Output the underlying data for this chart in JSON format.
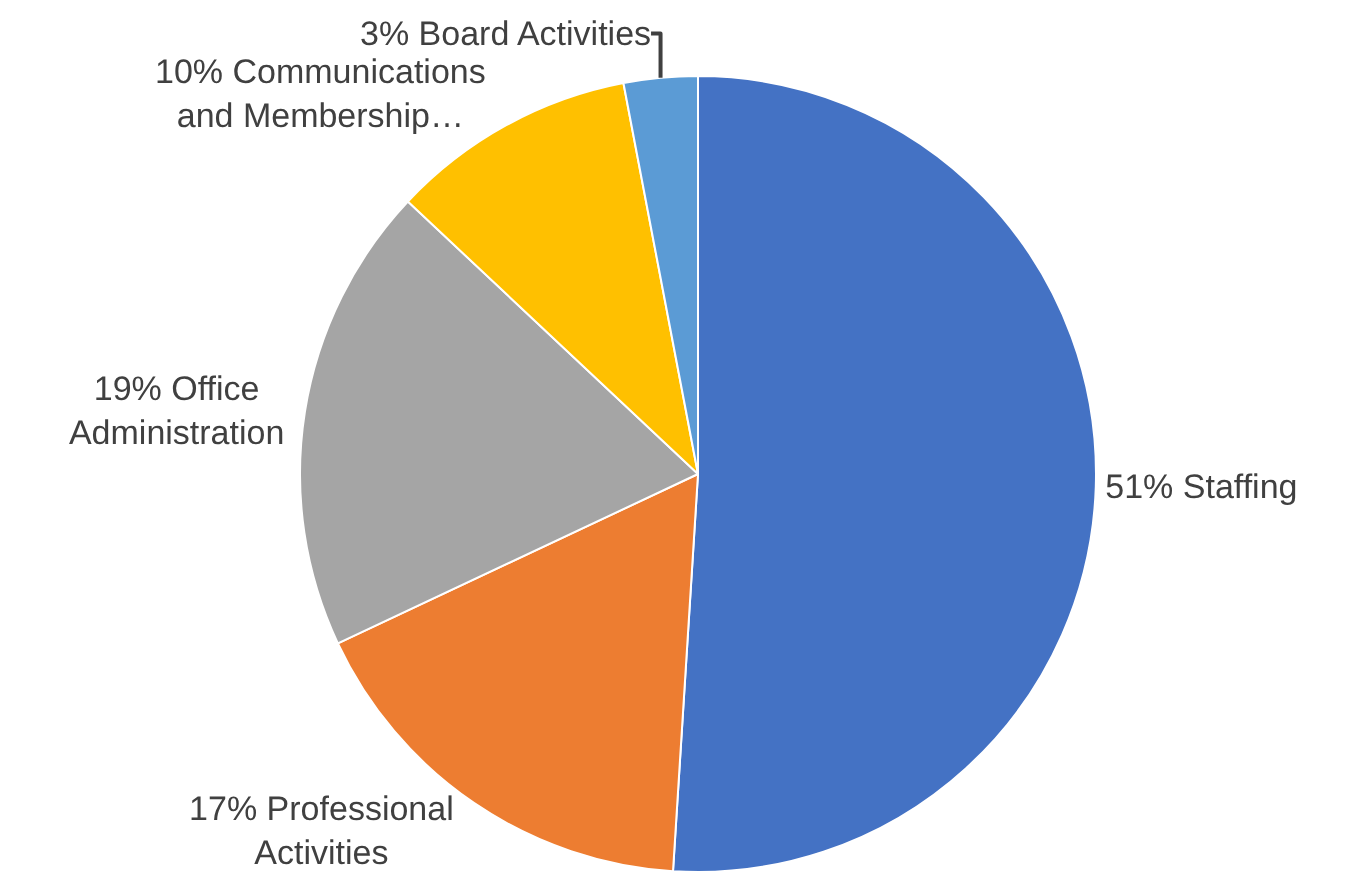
{
  "chart_data": {
    "type": "pie",
    "categories": [
      "Staffing",
      "Professional Activities",
      "Office Administration",
      "Communications and Membership…",
      "Board Activities"
    ],
    "values": [
      51,
      17,
      19,
      10,
      3
    ],
    "colors": [
      "#4472c4",
      "#ed7d31",
      "#a5a5a5",
      "#ffc000",
      "#5b9bd5"
    ],
    "value_labels": [
      "51%",
      "17%",
      "19%",
      "10%",
      "3%"
    ],
    "legend": false
  }
}
